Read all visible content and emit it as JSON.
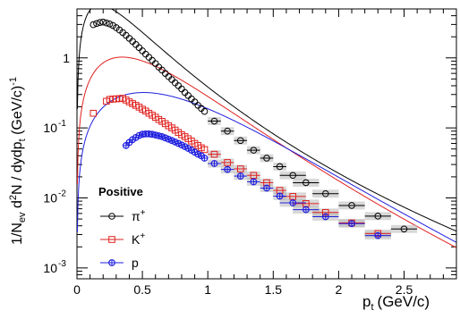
{
  "chart_data": {
    "type": "scatter",
    "title": "",
    "xlabel": "p",
    "xlabel_sub": "t",
    "xlabel_unit": "(GeV/c)",
    "ylabel_parts": {
      "a": "1/N",
      "a_sub": "ev",
      "b": " d",
      "b_sup": "2",
      "c": "N / dydp",
      "c_sub": "t",
      "d": " (GeV/c)",
      "d_sup": "-1"
    },
    "xlim": [
      0,
      2.9
    ],
    "ylim": [
      0.0007,
      5
    ],
    "y_scale": "log",
    "x_ticks": [
      {
        "v": 0,
        "t": "0"
      },
      {
        "v": 0.5,
        "t": "0.5"
      },
      {
        "v": 1,
        "t": "1"
      },
      {
        "v": 1.5,
        "t": "1.5"
      },
      {
        "v": 2,
        "t": "2"
      },
      {
        "v": 2.5,
        "t": "2.5"
      }
    ],
    "y_ticks": [
      {
        "v": 0.001,
        "base": "10",
        "exp": "-3"
      },
      {
        "v": 0.01,
        "base": "10",
        "exp": "-2"
      },
      {
        "v": 0.1,
        "base": "10",
        "exp": "-1"
      },
      {
        "v": 1,
        "base": "1",
        "exp": ""
      }
    ],
    "legend": {
      "title": "Positive",
      "position": "lower-left",
      "entries": [
        {
          "label": "π",
          "sup": "+",
          "marker": "circle",
          "color": "#000000"
        },
        {
          "label": "K",
          "sup": "+",
          "marker": "square",
          "color": "#e0211f"
        },
        {
          "label": "p",
          "sup": "",
          "marker": "cross-circle",
          "color": "#1f1fe0"
        }
      ]
    },
    "series": [
      {
        "name": "π+",
        "color": "#000000",
        "marker": "circle",
        "points": [
          [
            0.125,
            2.98
          ],
          [
            0.15,
            3.1
          ],
          [
            0.175,
            3.2
          ],
          [
            0.2,
            3.25
          ],
          [
            0.225,
            3.15
          ],
          [
            0.25,
            3.05
          ],
          [
            0.275,
            2.9
          ],
          [
            0.3,
            2.7
          ],
          [
            0.325,
            2.5
          ],
          [
            0.35,
            2.3
          ],
          [
            0.375,
            2.1
          ],
          [
            0.4,
            1.9
          ],
          [
            0.425,
            1.72
          ],
          [
            0.45,
            1.55
          ],
          [
            0.475,
            1.4
          ],
          [
            0.5,
            1.26
          ],
          [
            0.525,
            1.13
          ],
          [
            0.55,
            1.02
          ],
          [
            0.575,
            0.92
          ],
          [
            0.6,
            0.83
          ],
          [
            0.625,
            0.74
          ],
          [
            0.65,
            0.67
          ],
          [
            0.675,
            0.6
          ],
          [
            0.7,
            0.54
          ],
          [
            0.725,
            0.49
          ],
          [
            0.75,
            0.44
          ],
          [
            0.775,
            0.4
          ],
          [
            0.8,
            0.36
          ],
          [
            0.825,
            0.32
          ],
          [
            0.85,
            0.29
          ],
          [
            0.875,
            0.26
          ],
          [
            0.9,
            0.235
          ],
          [
            0.925,
            0.21
          ],
          [
            0.95,
            0.19
          ],
          [
            0.975,
            0.172
          ],
          [
            1.05,
            0.125
          ],
          [
            1.15,
            0.09
          ],
          [
            1.25,
            0.066
          ],
          [
            1.35,
            0.048
          ],
          [
            1.45,
            0.037
          ],
          [
            1.55,
            0.028
          ],
          [
            1.65,
            0.021
          ],
          [
            1.75,
            0.0165
          ],
          [
            1.9,
            0.0115
          ],
          [
            2.1,
            0.0078
          ],
          [
            2.3,
            0.0055
          ],
          [
            2.5,
            0.0036
          ]
        ],
        "xerr": [
          1.1,
          1.35,
          1.55,
          1.75,
          1.95,
          2.15,
          2.35
        ],
        "curve": "levy"
      },
      {
        "name": "K+",
        "color": "#e0211f",
        "marker": "square",
        "points": [
          [
            0.225,
            0.24
          ],
          [
            0.25,
            0.255
          ],
          [
            0.275,
            0.258
          ],
          [
            0.3,
            0.26
          ],
          [
            0.325,
            0.262
          ],
          [
            0.35,
            0.265
          ],
          [
            0.375,
            0.25
          ],
          [
            0.4,
            0.235
          ],
          [
            0.425,
            0.222
          ],
          [
            0.45,
            0.21
          ],
          [
            0.475,
            0.198
          ],
          [
            0.5,
            0.185
          ],
          [
            0.525,
            0.174
          ],
          [
            0.55,
            0.162
          ],
          [
            0.575,
            0.152
          ],
          [
            0.6,
            0.142
          ],
          [
            0.625,
            0.132
          ],
          [
            0.65,
            0.124
          ],
          [
            0.675,
            0.115
          ],
          [
            0.7,
            0.107
          ],
          [
            0.725,
            0.1
          ],
          [
            0.75,
            0.093
          ],
          [
            0.775,
            0.086
          ],
          [
            0.8,
            0.08
          ],
          [
            0.825,
            0.075
          ],
          [
            0.85,
            0.07
          ],
          [
            0.875,
            0.065
          ],
          [
            0.9,
            0.06
          ],
          [
            0.925,
            0.056
          ],
          [
            0.95,
            0.052
          ],
          [
            0.975,
            0.049
          ],
          [
            1.05,
            0.042
          ],
          [
            1.15,
            0.032
          ],
          [
            1.25,
            0.026
          ],
          [
            1.35,
            0.021
          ],
          [
            1.45,
            0.0165
          ],
          [
            1.55,
            0.0128
          ],
          [
            1.65,
            0.0105
          ],
          [
            1.75,
            0.0083
          ],
          [
            1.9,
            0.0062
          ],
          [
            2.1,
            0.0044
          ],
          [
            2.3,
            0.0031
          ],
          [
            0.125,
            0.162
          ]
        ],
        "curve": "levy"
      },
      {
        "name": "p",
        "color": "#1f1fe0",
        "marker": "cross-circle",
        "points": [
          [
            0.375,
            0.056
          ],
          [
            0.4,
            0.062
          ],
          [
            0.425,
            0.068
          ],
          [
            0.45,
            0.073
          ],
          [
            0.475,
            0.078
          ],
          [
            0.5,
            0.081
          ],
          [
            0.525,
            0.082
          ],
          [
            0.55,
            0.082
          ],
          [
            0.575,
            0.081
          ],
          [
            0.6,
            0.079
          ],
          [
            0.625,
            0.077
          ],
          [
            0.65,
            0.075
          ],
          [
            0.675,
            0.072
          ],
          [
            0.7,
            0.069
          ],
          [
            0.725,
            0.066
          ],
          [
            0.75,
            0.063
          ],
          [
            0.775,
            0.06
          ],
          [
            0.8,
            0.057
          ],
          [
            0.825,
            0.054
          ],
          [
            0.85,
            0.051
          ],
          [
            0.875,
            0.048
          ],
          [
            0.9,
            0.045
          ],
          [
            0.925,
            0.042
          ],
          [
            0.95,
            0.04
          ],
          [
            0.975,
            0.037
          ],
          [
            1.05,
            0.031
          ],
          [
            1.15,
            0.0255
          ],
          [
            1.25,
            0.0205
          ],
          [
            1.35,
            0.017
          ],
          [
            1.45,
            0.0138
          ],
          [
            1.55,
            0.0106
          ],
          [
            1.65,
            0.0085
          ],
          [
            1.75,
            0.0068
          ],
          [
            1.9,
            0.0054
          ],
          [
            2.1,
            0.0043
          ],
          [
            2.3,
            0.0029
          ]
        ],
        "curve": "levy"
      }
    ]
  }
}
